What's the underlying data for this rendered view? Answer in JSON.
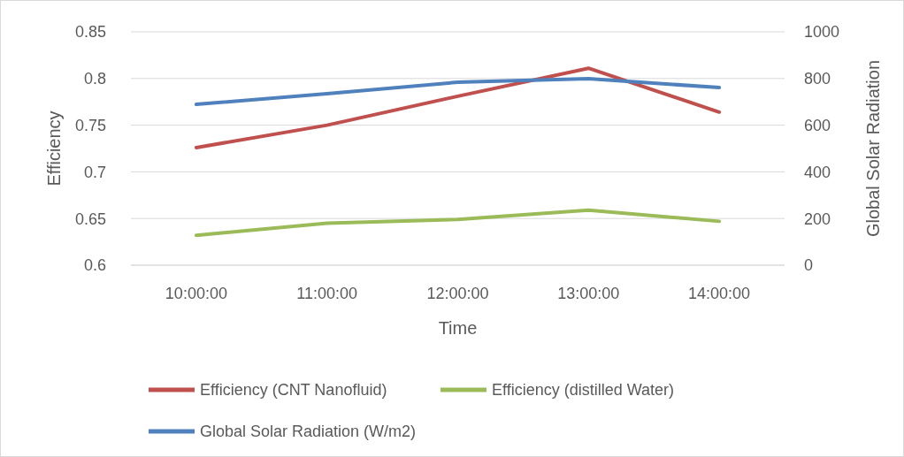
{
  "chart_data": {
    "type": "line",
    "xlabel": "Time",
    "ylabel": "Efficiency",
    "y2label": "Global Solar Radiation",
    "categories": [
      "10:00:00",
      "11:00:00",
      "12:00:00",
      "13:00:00",
      "14:00:00"
    ],
    "series": [
      {
        "name": "Efficiency (CNT Nanofluid)",
        "color": "#c0504d",
        "values": [
          0.726,
          0.75,
          0.781,
          0.811,
          0.764
        ]
      },
      {
        "name": "Efficiency (distilled Water)",
        "color": "#9bbb59",
        "values": [
          0.632,
          0.645,
          0.649,
          0.659,
          0.647
        ]
      },
      {
        "name": "Global Solar Radiation (W/m2)",
        "color": "#4f81bd",
        "axis": "y2",
        "values": [
          689,
          735,
          784,
          799,
          761
        ]
      }
    ],
    "ylim": [
      0.6,
      0.85
    ],
    "yticks": [
      0.6,
      0.65,
      0.7,
      0.75,
      0.8,
      0.85
    ],
    "y2lim": [
      0,
      1000
    ],
    "y2ticks": [
      0,
      200,
      400,
      600,
      800,
      1000
    ],
    "grid": "y",
    "legend": "bottom",
    "marker": "none",
    "line_style": "solid"
  }
}
